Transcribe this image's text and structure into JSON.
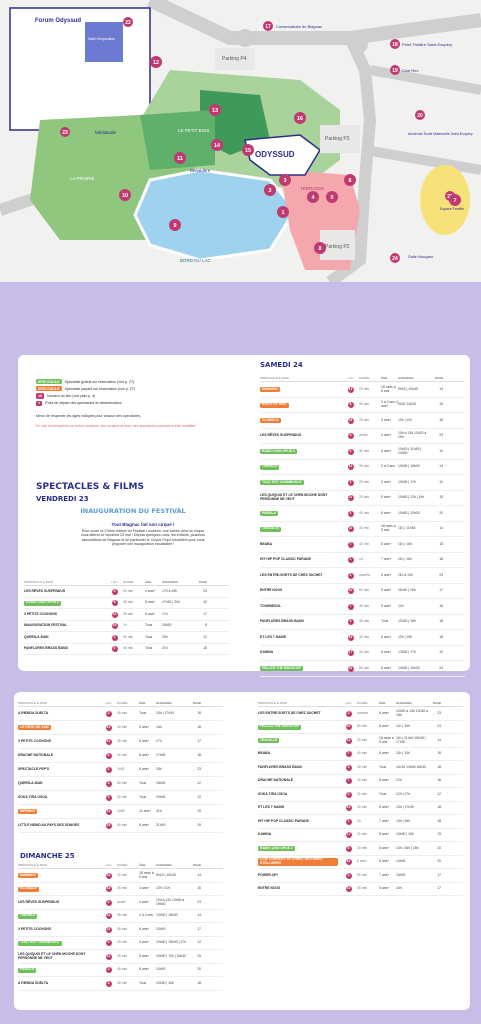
{
  "map": {
    "labels": {
      "forum": "Forum Odyssud",
      "salle": "Salle d'exposition",
      "mediatude": "Médiatude",
      "parking_p4": "Parking P4",
      "parking_p3": "Parking P3",
      "parking_p2": "Parking P2",
      "odyssud": "ODYSSUD",
      "prairie": "LA PRAIRIE",
      "petit_bois": "LE PETIT BOIS",
      "belvedere": "Belvédère",
      "bord_lac": "BORD DU LAC",
      "terrasse": "TERRASSE",
      "conservatoire": "Conservatoire de Blagnac",
      "point_theatre": "Point Théâtre Saint-Exupéry",
      "ciné_rex": "Ciné Rex",
      "ecole": "Ancienne École Maternelle Saint-Exupéry",
      "espace": "Espace Famille",
      "salle_nougaro": "Salle Nougaro",
      "num_17": "17",
      "num_18": "18",
      "num_19": "19",
      "num_20": "20",
      "num_21": "21",
      "num_22": "22",
      "num_23": "23",
      "num_24": "24"
    },
    "numbers": [
      "12",
      "13",
      "16",
      "11",
      "14",
      "15",
      "10",
      "9",
      "3",
      "2",
      "4",
      "5",
      "6",
      "7",
      "8",
      "1"
    ]
  },
  "legend": {
    "items": [
      {
        "title": "Point Infos",
        "text": "Toutes demandes de renseignements (infos accessibles au point extérieur)"
      },
      {
        "title": "Poste de secours",
        "text": "Pour tous les petits bobos !"
      },
      {
        "title": "Se restaurer - Food trucks",
        "text": "Dégustez des produits locaux (repas midi, soir et goûters à toute heure)."
      },
      {
        "title": "Point d'eau",
        "text": "Des points d'eau sont à disposition dans le parc et à Odyssud."
      },
      {
        "title": "Découvrir naturelle",
        "text": ""
      },
      {
        "title": "Toilettes (accessibles PMR)",
        "text": ""
      },
      {
        "title": "Toilettes non (accessibles PMR)",
        "text": ""
      },
      {
        "title": "Espaces Change bébé",
        "text": ""
      }
    ],
    "right_note": "Retrouvez sur le site festival-luluberlu.com les infos des visites des lieux et accessibilité"
  },
  "key": {
    "items": [
      {
        "tag": "SPECTACLE",
        "color": "#6fbf5b",
        "text": "Spectacle gratuit sur réservation (voir p. 27)"
      },
      {
        "tag": "SPECTACLE",
        "color": "#ef7f37",
        "text": "Spectacle payant sur réservation (voir p. 27)"
      },
      {
        "tag": "10",
        "color": "#c03a72",
        "text": "Numéro du lieu (voir plan p. 4)"
      },
      {
        "tag": "●",
        "color": "#c03a72",
        "text": "Point de départ des spectacles en déambulation"
      }
    ],
    "note1": "Merci de respecter les âges indiqués pour chacun des spectacles.",
    "note2": "En cas d'intempéries ou fortes chaleurs, les horaires et lieux des spectacles pourraient être modifiés."
  },
  "section": {
    "title": "SPECTACLES & FILMS",
    "day1": "VENDREDI 23",
    "inauguration_title": "INAUGURATION DU FESTIVAL",
    "inauguration_sub": "Tout Blagnac fait son cirque !",
    "inauguration_text": "Pour ouvrir la 17ème édition du Festival Luluberlu, une soirée riche en cirque vous attend ce vendredi 23 mai ! Depuis quelques mois, les enfants, plusieurs associations de Blagnac et en particulier le Cirque Pop's travaillent pour vous proposer une inauguration inoubliable !",
    "day2": "SAMEDI 24",
    "day3": "DIMANCHE 25"
  },
  "headers": {
    "spectacle": "SPECTACLE & FILM",
    "lieu": "LIEU",
    "duree": "DURÉE",
    "age": "ÂGE",
    "horaires": "HORAIRES",
    "page": "PAGE"
  },
  "fri": [
    {
      "name": "LES RÊVES SUSPENDUS",
      "t": "",
      "lieu": "4",
      "duree": "50 min",
      "age": "4 ans+",
      "hor": "17h à 19h",
      "page": "23"
    },
    {
      "name": "RADIO 2000 OPUS 2",
      "t": "g",
      "lieu": "6",
      "duree": "30 min",
      "age": "8 ans+",
      "hor": "17h30 | 20h",
      "page": "10"
    },
    {
      "name": "3 PETITS COCHONS",
      "t": "",
      "lieu": "12",
      "duree": "35 min",
      "age": "6 ans+",
      "hor": "17h",
      "page": "17"
    },
    {
      "name": "INAUGURATION FESTIVAL",
      "t": "",
      "lieu": "15",
      "duree": "1h",
      "age": "Tous",
      "hor": "18h30",
      "page": "8"
    },
    {
      "name": "QUEEN-A-MAN",
      "t": "",
      "lieu": "3",
      "duree": "50 min",
      "age": "Tous",
      "hor": "20h",
      "page": "12"
    },
    {
      "name": "FANFLURES BRASS BAND",
      "t": "",
      "lieu": "2",
      "duree": "45 min",
      "age": "Tous",
      "hor": "21h",
      "page": "18"
    }
  ],
  "sat": [
    {
      "name": "MAMMUK",
      "t": "o",
      "lieu": "13",
      "duree": "20 min",
      "age": "18 mois à 5 ans",
      "hor": "9h15 | 10h45",
      "page": "14"
    },
    {
      "name": "BOITE DE NUIT",
      "t": "o",
      "lieu": "8",
      "duree": "35 min",
      "age": "0 à 3 ans 4 ans+",
      "hor": "9h30 14h30",
      "page": "15"
    },
    {
      "name": "GLOBULE",
      "t": "o",
      "lieu": "18",
      "duree": "25 min",
      "age": "3 ans+",
      "hor": "10h | 11h",
      "page": "16"
    },
    {
      "name": "LES RÊVES SUSPENDUS",
      "t": "",
      "lieu": "4",
      "duree": "durée",
      "age": "4 ans+",
      "hor": "10h à 13h 13h30 à 19h",
      "page": "23"
    },
    {
      "name": "RADIO 2000 OPUS 2",
      "t": "g",
      "lieu": "6",
      "duree": "30 min",
      "age": "8 ans+",
      "hor": "10h15 | 11h45 | 14h30",
      "page": "10"
    },
    {
      "name": "TWINKLE",
      "t": "g",
      "lieu": "13",
      "duree": "35 min",
      "age": "0 à 3 ans",
      "hor": "10h30 | 16h30",
      "page": "14"
    },
    {
      "name": "TOUT EST CHAMBOULÉ",
      "t": "g",
      "lieu": "9",
      "duree": "25 min",
      "age": "3 ans+",
      "hor": "10h30 | 17h",
      "page": "12"
    },
    {
      "name": "LES QUIQUOI ET LE CHEN MOCHE DONT PERSONNE NE VEUT",
      "t": "",
      "lieu": "11",
      "duree": "25 min",
      "age": "5 ans+",
      "hor": "10h30 | 12h | 16h",
      "page": "15"
    },
    {
      "name": "PAROLA",
      "t": "g",
      "lieu": "2",
      "duree": "45 min",
      "age": "8 ans+",
      "hor": "10h30 | 13h30",
      "page": "20"
    },
    {
      "name": "TROUILLE",
      "t": "g",
      "lieu": "14",
      "duree": "30 min",
      "age": "18 mois à 5 ans",
      "hor": "11h | 11h45",
      "page": "14"
    },
    {
      "name": "BEABA",
      "t": "",
      "lieu": "7",
      "duree": "40 min",
      "age": "5 ans+",
      "hor": "11h | 16h",
      "page": "18"
    },
    {
      "name": "HIT HIP POP CLASSIC PARADE",
      "t": "",
      "lieu": "1",
      "duree": "1h",
      "age": "7 ans+",
      "hor": "11h | 16h",
      "page": "18"
    },
    {
      "name": "LES ENTRE-SORTS DE CHEZ SUCHET",
      "t": "",
      "lieu": "2",
      "duree": "ouverts",
      "age": "6 ans+",
      "hor": "11h à 13h",
      "page": "23"
    },
    {
      "name": "ENTRE NOUS",
      "t": "",
      "lieu": "10",
      "duree": "50 min",
      "age": "5 ans+",
      "hor": "11h45 | 16h",
      "page": "17"
    },
    {
      "name": "TOURNESOL",
      "t": "",
      "lieu": "7",
      "duree": "35 min",
      "age": "5 ans+",
      "hor": "12h",
      "page": "15"
    },
    {
      "name": "FANFLURES BRASS BAND",
      "t": "",
      "lieu": "3",
      "duree": "45 min",
      "age": "Tous",
      "hor": "12h30 | 18h",
      "page": "18"
    },
    {
      "name": "ET LES 7 NAINS",
      "t": "",
      "lieu": "15",
      "duree": "40 min",
      "age": "5 ans+",
      "hor": "13h | 15h",
      "page": "18"
    },
    {
      "name": "KAHINA",
      "t": "",
      "lieu": "17",
      "duree": "40 min",
      "age": "6 ans+",
      "hor": "13h30 | 17h",
      "page": "19"
    },
    {
      "name": "FELLED THE MONSTER",
      "t": "g",
      "lieu": "22",
      "duree": "80 min",
      "age": "6 ans+",
      "hor": "14h30 | 16h30",
      "page": "24"
    }
  ],
  "sat2": [
    {
      "name": "A RIENDA SUELTA",
      "t": "",
      "lieu": "3",
      "duree": "45 min",
      "age": "Tous",
      "hor": "15h | 17h30",
      "page": "18"
    },
    {
      "name": "LE RÊVE DE SAM",
      "t": "o",
      "lieu": "16",
      "duree": "40 min",
      "age": "3 ans+",
      "hor": "16h",
      "page": "16"
    },
    {
      "name": "3 PETITS COCHONS",
      "t": "",
      "lieu": "12",
      "duree": "35 min",
      "age": "6 ans+",
      "hor": "17h",
      "page": "17"
    },
    {
      "name": "DRACHE NATIONALE",
      "t": "",
      "lieu": "6",
      "duree": "40 min",
      "age": "8 ans+",
      "hor": "17h45",
      "page": "16"
    },
    {
      "name": "SPECTACLE PEP'S",
      "t": "",
      "lieu": "1",
      "duree": "1h30",
      "age": "5 ans+",
      "hor": "18h",
      "page": "23"
    },
    {
      "name": "QUEEN-A-MAN",
      "t": "",
      "lieu": "3",
      "duree": "50 min",
      "age": "Tous",
      "hor": "18h30",
      "page": "12"
    },
    {
      "name": "SOKA TIRA OSOA",
      "t": "",
      "lieu": "9",
      "duree": "30 min",
      "age": "Tous",
      "hor": "20h30",
      "page": "12"
    },
    {
      "name": "INFERNO",
      "t": "o",
      "lieu": "15",
      "duree": "1h05",
      "age": "12 ans+",
      "hor": "21h",
      "page": "19"
    },
    {
      "name": "LITTLE NEMO AU PAYS DES SONGES",
      "t": "",
      "lieu": "19",
      "duree": "40 min",
      "age": "8 ans+",
      "hor": "21h15",
      "page": "19"
    }
  ],
  "sun": [
    {
      "name": "MAMMUK",
      "t": "o",
      "lieu": "13",
      "duree": "20 min",
      "age": "18 mois à 5 ans",
      "hor": "9h15 | 10h45",
      "page": "14"
    },
    {
      "name": "GLOBULE",
      "t": "o",
      "lieu": "18",
      "duree": "25 min",
      "age": "3 ans+",
      "hor": "10h | 11h",
      "page": "16"
    },
    {
      "name": "LES RÊVES SUSPENDUS",
      "t": "",
      "lieu": "4",
      "duree": "durée",
      "age": "4 ans+",
      "hor": "10h à 12h 13h30 à 19h30",
      "page": "23"
    },
    {
      "name": "TWINKLE",
      "t": "g",
      "lieu": "13",
      "duree": "35 min",
      "age": "0 à 3 ans",
      "hor": "10h30 | 16h30",
      "page": "14"
    },
    {
      "name": "3 PETITS COCHONS",
      "t": "",
      "lieu": "12",
      "duree": "35 min",
      "age": "6 ans+",
      "hor": "10h15",
      "page": "17"
    },
    {
      "name": "TOUT EST CHAMBOULÉ",
      "t": "g",
      "lieu": "9",
      "duree": "25 min",
      "age": "3 ans+",
      "hor": "10h30 | 15h30 | 17h",
      "page": "12"
    },
    {
      "name": "LES QUIQUOI ET LE CHEN MOCHE DONT PERSONNE NE VEUT",
      "t": "",
      "lieu": "11",
      "duree": "25 min",
      "age": "5 ans+",
      "hor": "10h30 | 12h | 16h30",
      "page": "15"
    },
    {
      "name": "PAROLA",
      "t": "g",
      "lieu": "2",
      "duree": "45 min",
      "age": "8 ans+",
      "hor": "10h30",
      "page": "20"
    },
    {
      "name": "A RIENDA SUELTA",
      "t": "",
      "lieu": "3",
      "duree": "45 min",
      "age": "Tous",
      "hor": "10h30 | 16h",
      "page": "18"
    }
  ],
  "sun2": [
    {
      "name": "LES ENTRE-SORTS DE CHEZ SUCHET",
      "t": "",
      "lieu": "2",
      "duree": "ouverts",
      "age": "6 ans+",
      "hor": "10h30 à 13h 13h30 à 18h",
      "page": "23"
    },
    {
      "name": "FELLED THE MONSTER",
      "t": "g",
      "lieu": "22",
      "duree": "80 min",
      "age": "6 ans+",
      "hor": "11h | 15h",
      "page": "24"
    },
    {
      "name": "TROUILLE",
      "t": "g",
      "lieu": "14",
      "duree": "30 min",
      "age": "18 mois à 5 ans",
      "hor": "11h | 11h45 15h30 | 17h30",
      "page": "14"
    },
    {
      "name": "BEABA",
      "t": "",
      "lieu": "7",
      "duree": "40 min",
      "age": "5 ans+",
      "hor": "11h | 15h",
      "page": "18"
    },
    {
      "name": "FANFLURES BRASS BAND",
      "t": "",
      "lieu": "3",
      "duree": "45 min",
      "age": "Tous",
      "hor": "11h15 14h45 16h30",
      "page": "18"
    },
    {
      "name": "DRACHE NATIONALE",
      "t": "",
      "lieu": "7",
      "duree": "40 min",
      "age": "8 ans+",
      "hor": "12h",
      "page": "16"
    },
    {
      "name": "SOKA TIRA OSOA",
      "t": "",
      "lieu": "9",
      "duree": "30 min",
      "age": "Tous",
      "hor": "12h | 17h",
      "page": "12"
    },
    {
      "name": "ET LES 7 NAINS",
      "t": "",
      "lieu": "15",
      "duree": "40 min",
      "age": "5 ans+",
      "hor": "13h | 17h30",
      "page": "18"
    },
    {
      "name": "HIT HIP POP CLASSIC PARADE",
      "t": "",
      "lieu": "1",
      "duree": "1h",
      "age": "7 ans+",
      "hor": "13h | 16h",
      "page": "18"
    },
    {
      "name": "KAHINA",
      "t": "",
      "lieu": "17",
      "duree": "40 min",
      "age": "6 ans+",
      "hor": "13h30 | 16h",
      "page": "19"
    },
    {
      "name": "RADIO 2000 OPUS 2",
      "t": "g",
      "lieu": "6",
      "duree": "30 min",
      "age": "8 ans+",
      "hor": "14h | 16h | 18h",
      "page": "10"
    },
    {
      "name": "C'NÉ CONCERT LE CHANT DES ÂMES STELLAIRES",
      "t": "o",
      "lieu": "10",
      "duree": "6 ans+",
      "age": "6 ans+",
      "hor": "14h30",
      "page": "20"
    },
    {
      "name": "POWER-UP!",
      "t": "",
      "lieu": "3",
      "duree": "50 min",
      "age": "7 ans+",
      "hor": "16h30",
      "page": "17"
    },
    {
      "name": "ENTRE NOUS",
      "t": "",
      "lieu": "10",
      "duree": "50 min",
      "age": "5 ans+",
      "hor": "16h",
      "page": "17"
    }
  ]
}
